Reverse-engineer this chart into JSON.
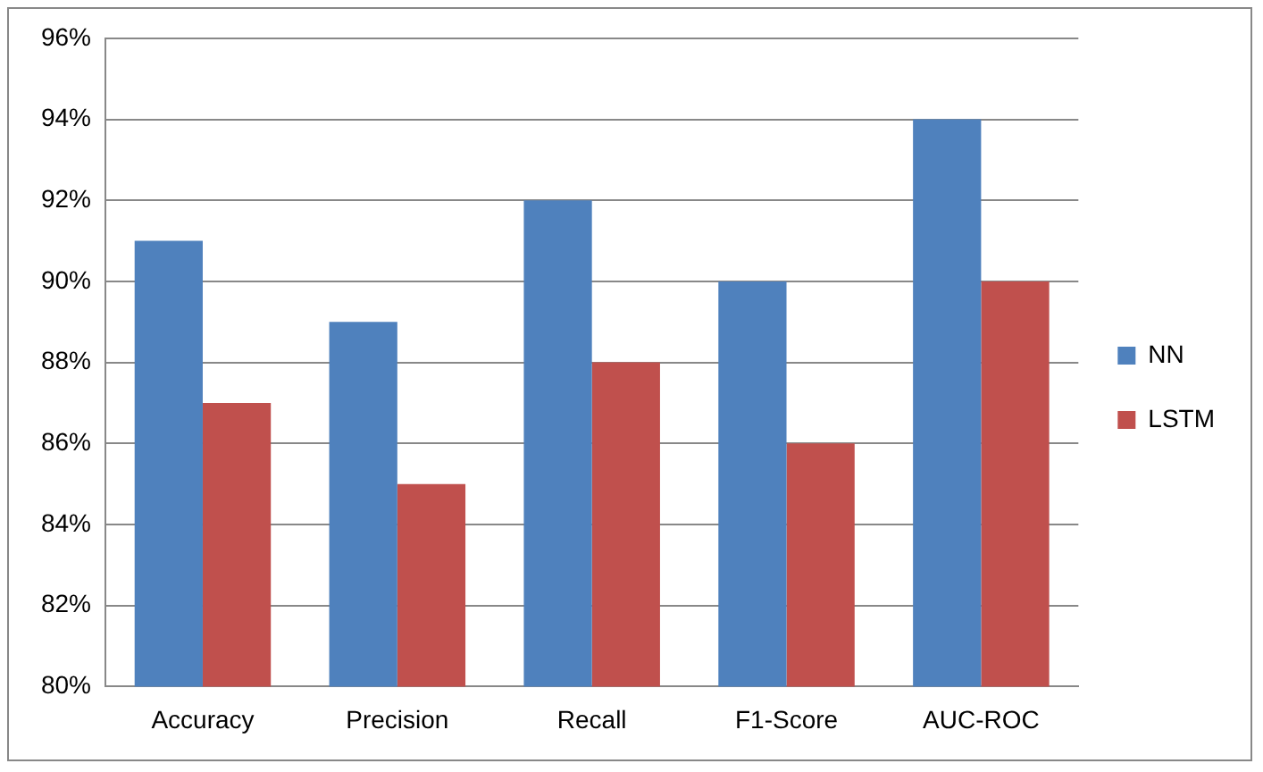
{
  "chart_data": {
    "type": "bar",
    "categories": [
      "Accuracy",
      "Precision",
      "Recall",
      "F1-Score",
      "AUC-ROC"
    ],
    "series": [
      {
        "name": "NN",
        "color": "#4f81bd",
        "values": [
          91,
          89,
          92,
          90,
          94
        ]
      },
      {
        "name": "LSTM",
        "color": "#c0504d",
        "values": [
          87,
          85,
          88,
          86,
          90
        ]
      }
    ],
    "ylim": [
      80,
      96
    ],
    "yticks": [
      {
        "value": 80,
        "label": "80%"
      },
      {
        "value": 82,
        "label": "82%"
      },
      {
        "value": 84,
        "label": "84%"
      },
      {
        "value": 86,
        "label": "86%"
      },
      {
        "value": 88,
        "label": "88%"
      },
      {
        "value": 90,
        "label": "90%"
      },
      {
        "value": 92,
        "label": "92%"
      },
      {
        "value": 94,
        "label": "94%"
      },
      {
        "value": 96,
        "label": "96%"
      }
    ],
    "grid": "y",
    "legend": "right"
  }
}
